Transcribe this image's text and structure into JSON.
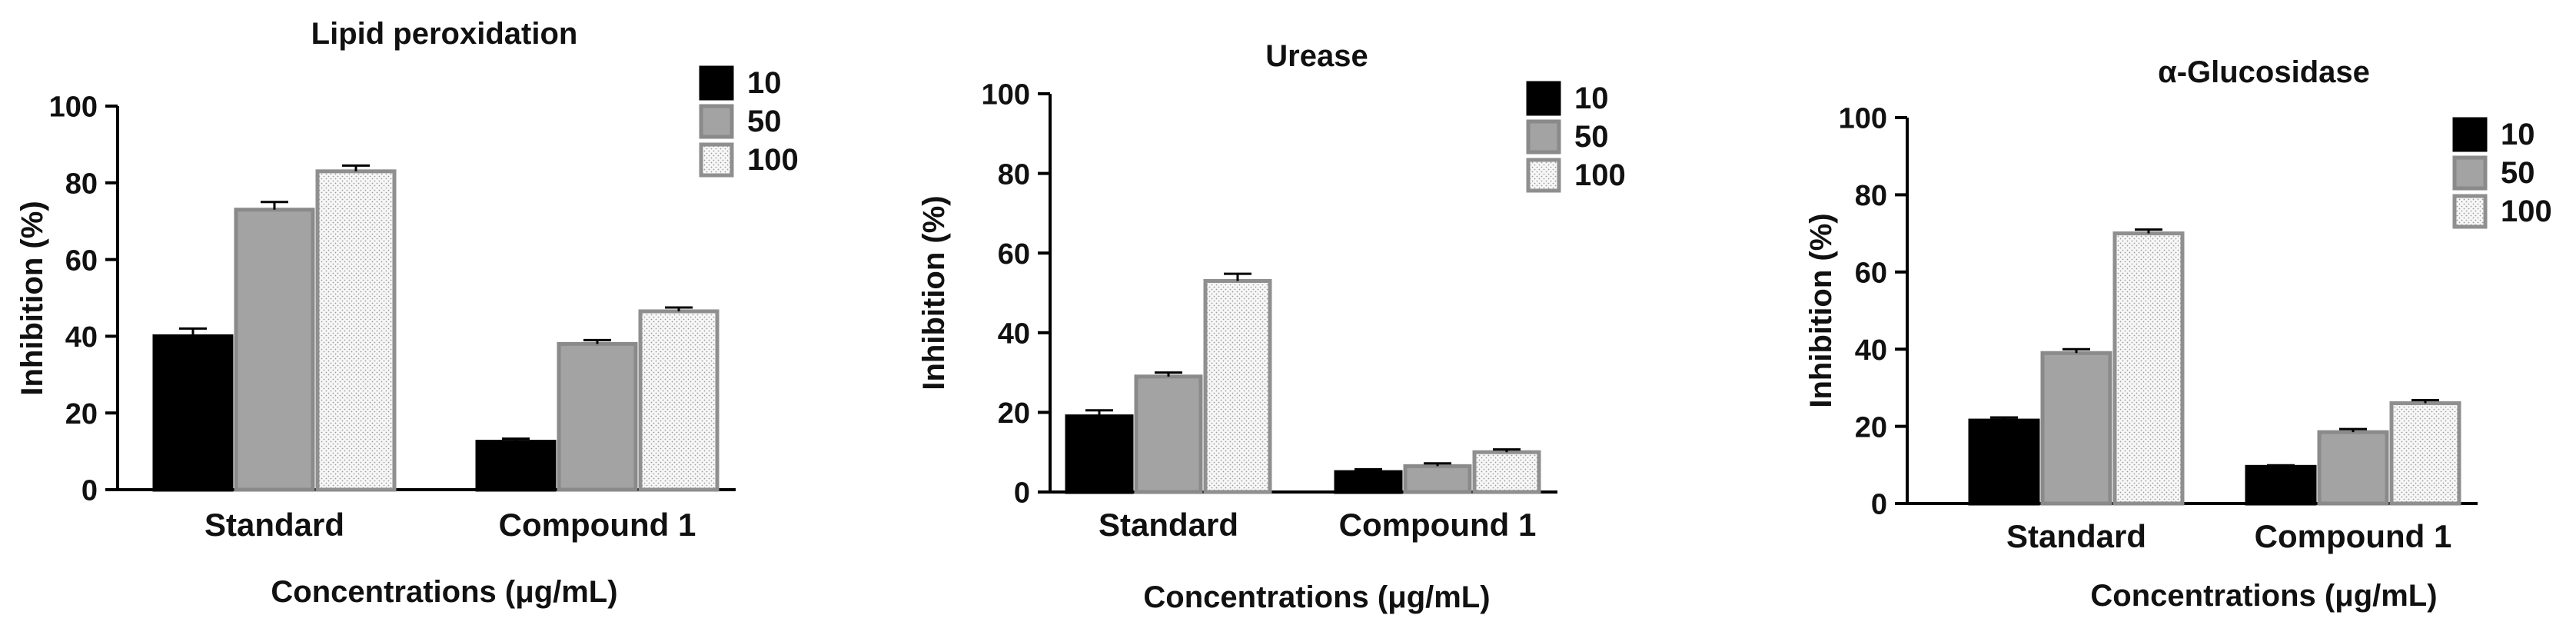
{
  "chart_data": [
    {
      "type": "bar",
      "title": "Lipid peroxidation",
      "xlabel": "Concentrations (μg/mL)",
      "ylabel": "Inhibition (%)",
      "ylim": [
        0,
        100
      ],
      "yticks": [
        "0",
        "20",
        "40",
        "60",
        "80",
        "100"
      ],
      "categories": [
        "Standard",
        "Compound 1"
      ],
      "series": [
        {
          "name": "10",
          "values": [
            40,
            12.5
          ],
          "errors": [
            2,
            0.8
          ]
        },
        {
          "name": "50",
          "values": [
            73,
            38
          ],
          "errors": [
            2,
            1
          ]
        },
        {
          "name": "100",
          "values": [
            83,
            46.5
          ],
          "errors": [
            1.5,
            1
          ]
        }
      ],
      "legend_position": "top-right",
      "grid": false
    },
    {
      "type": "bar",
      "title": "Urease",
      "xlabel": "Concentrations (μg/mL)",
      "ylabel": "Inhibition (%)",
      "ylim": [
        0,
        100
      ],
      "yticks": [
        "0",
        "20",
        "40",
        "60",
        "80",
        "100"
      ],
      "categories": [
        "Standard",
        "Compound 1"
      ],
      "series": [
        {
          "name": "10",
          "values": [
            19,
            5
          ],
          "errors": [
            1.5,
            0.7
          ]
        },
        {
          "name": "50",
          "values": [
            29,
            6.5
          ],
          "errors": [
            1,
            0.7
          ]
        },
        {
          "name": "100",
          "values": [
            53,
            10
          ],
          "errors": [
            1.8,
            0.7
          ]
        }
      ],
      "legend_position": "top-right",
      "grid": false
    },
    {
      "type": "bar",
      "title": "α-Glucosidase",
      "xlabel": "Concentrations (μg/mL)",
      "ylabel": "Inhibition (%)",
      "ylim": [
        0,
        100
      ],
      "yticks": [
        "0",
        "20",
        "40",
        "60",
        "80",
        "100"
      ],
      "categories": [
        "Standard",
        "Compound 1"
      ],
      "series": [
        {
          "name": "10",
          "values": [
            21.5,
            9.5
          ],
          "errors": [
            0.8,
            0.4
          ]
        },
        {
          "name": "50",
          "values": [
            39,
            18.5
          ],
          "errors": [
            1,
            0.8
          ]
        },
        {
          "name": "100",
          "values": [
            70,
            26
          ],
          "errors": [
            1,
            0.8
          ]
        }
      ],
      "legend_position": "top-right",
      "grid": false
    }
  ],
  "series_style": {
    "colors": [
      "#000000",
      "#a3a3a3",
      "#f4f4f4"
    ],
    "outlines": [
      "#000000",
      "#8a8a8a",
      "#8f8f8f"
    ],
    "patterns": [
      "solid",
      "solid",
      "dots"
    ]
  }
}
